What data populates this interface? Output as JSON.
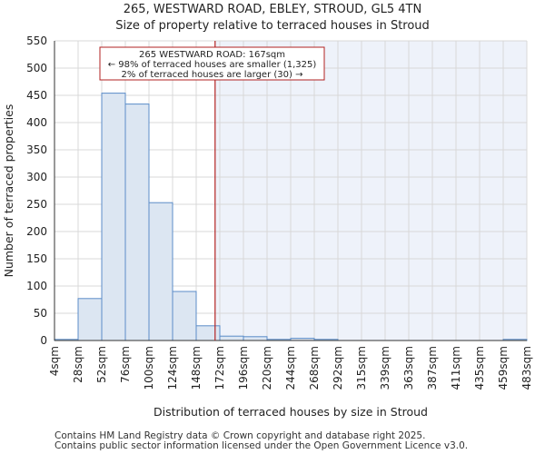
{
  "header": {
    "title": "265, WESTWARD ROAD, EBLEY, STROUD, GL5 4TN",
    "subtitle": "Size of property relative to terraced houses in Stroud"
  },
  "footer": {
    "line1": "Contains HM Land Registry data © Crown copyright and database right 2025.",
    "line2": "Contains public sector information licensed under the Open Government Licence v3.0."
  },
  "chart_data": {
    "type": "bar",
    "title": "Size of property relative to terraced houses in Stroud",
    "xlabel": "Distribution of terraced houses by size in Stroud",
    "ylabel": "Number of terraced properties",
    "x_tick_labels": [
      "4sqm",
      "28sqm",
      "52sqm",
      "76sqm",
      "100sqm",
      "124sqm",
      "148sqm",
      "172sqm",
      "196sqm",
      "220sqm",
      "244sqm",
      "268sqm",
      "292sqm",
      "315sqm",
      "339sqm",
      "363sqm",
      "387sqm",
      "411sqm",
      "435sqm",
      "459sqm",
      "483sqm"
    ],
    "values": [
      2,
      77,
      454,
      434,
      253,
      90,
      27,
      8,
      7,
      2,
      4,
      2,
      0,
      0,
      0,
      0,
      0,
      0,
      0,
      2
    ],
    "ylim": [
      0,
      550
    ],
    "yticks": [
      0,
      50,
      100,
      150,
      200,
      250,
      300,
      350,
      400,
      450,
      500,
      550
    ],
    "property_marker": {
      "value_sqm": 167,
      "bin_position": 6.8
    },
    "annotation": {
      "line1": "265 WESTWARD ROAD: 167sqm",
      "line2": "← 98% of terraced houses are smaller (1,325)",
      "line3": "2% of terraced houses are larger (30) →"
    },
    "colors": {
      "bar_fill": "#dce6f2",
      "bar_stroke": "#5b8cc8",
      "marker_line": "#b22222",
      "highlight_bg": "#eef2fa"
    }
  }
}
